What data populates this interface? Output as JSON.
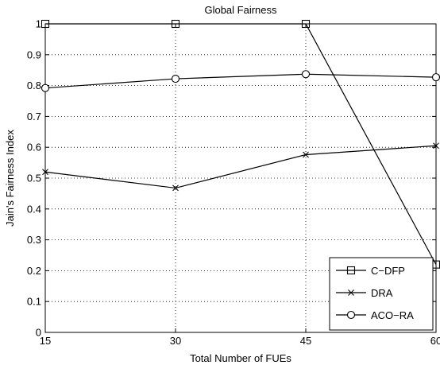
{
  "chart_data": {
    "type": "line",
    "title": "Global Fairness",
    "xlabel": "Total Number of FUEs",
    "ylabel": "Jain's Fairness Index",
    "x": [
      15,
      30,
      45,
      60
    ],
    "xlim": [
      15,
      60
    ],
    "ylim": [
      0,
      1
    ],
    "xticks": [
      "15",
      "30",
      "45",
      "60"
    ],
    "yticks": [
      "0",
      "0.1",
      "0.2",
      "0.3",
      "0.4",
      "0.5",
      "0.6",
      "0.7",
      "0.8",
      "0.9",
      "1"
    ],
    "grid": true,
    "legend_position": "bottom-right",
    "series": [
      {
        "name": "C−DFP",
        "marker": "square",
        "values": [
          1.0,
          1.0,
          1.0,
          0.22
        ]
      },
      {
        "name": "DRA",
        "marker": "x",
        "values": [
          0.52,
          0.468,
          0.576,
          0.605
        ]
      },
      {
        "name": "ACO−RA",
        "marker": "circle",
        "values": [
          0.792,
          0.822,
          0.837,
          0.827
        ]
      }
    ]
  }
}
